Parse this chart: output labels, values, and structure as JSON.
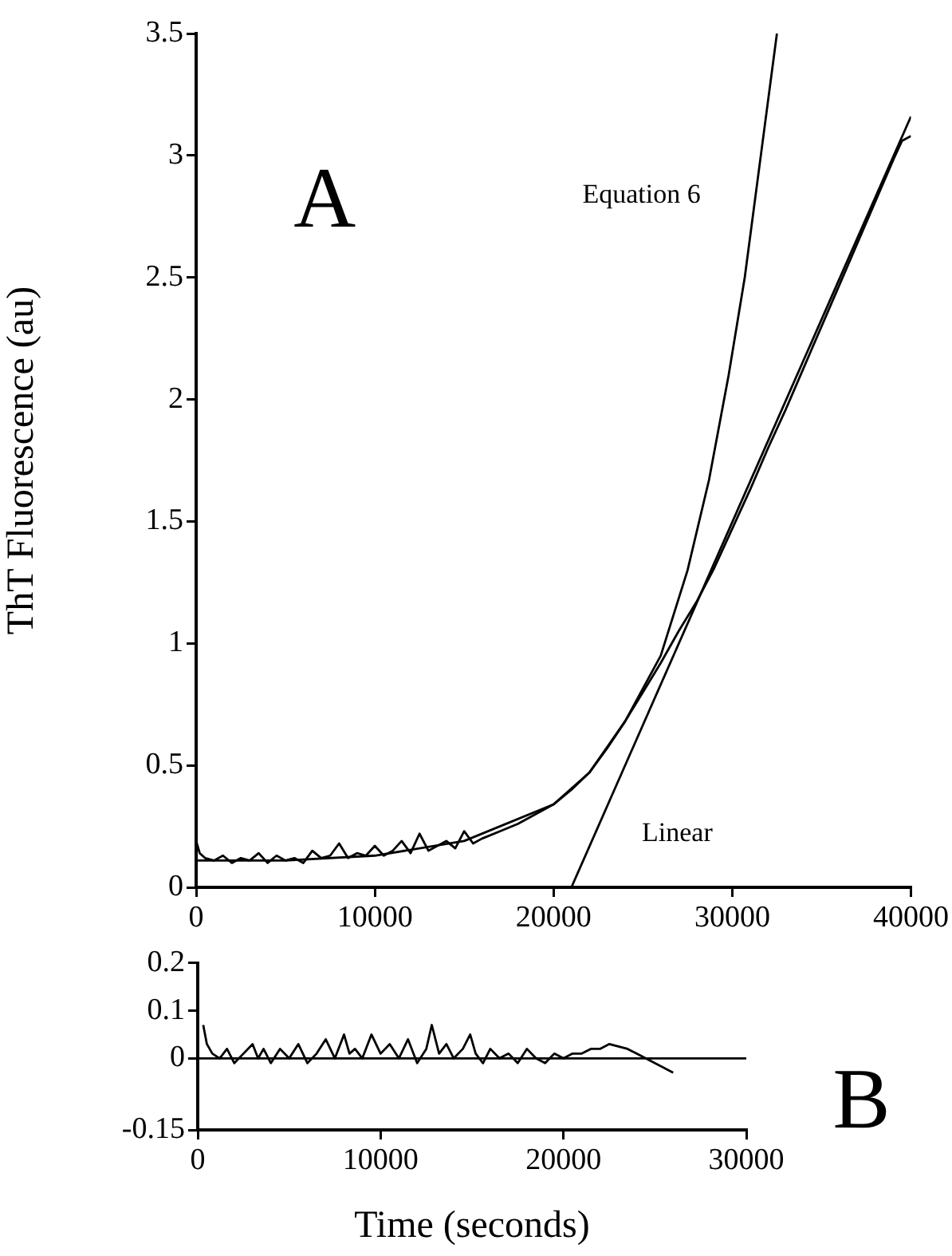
{
  "chart_data": [
    {
      "type": "line",
      "ylabel": "ThT Fluorescence (au)",
      "xlim": [
        0,
        40000
      ],
      "xticks": [
        0,
        10000,
        20000,
        30000,
        40000
      ],
      "ylim": [
        0,
        3.5
      ],
      "yticks": [
        0,
        0.5,
        1,
        1.5,
        2,
        2.5,
        3,
        3.5
      ],
      "grid": false,
      "legend": false,
      "marker": "none",
      "line_style": "solid",
      "annotations": [
        "A",
        "Equation 6",
        "Linear"
      ],
      "series": [
        {
          "color": "#000000",
          "x": [
            0,
            200,
            500,
            1000,
            1500,
            2000,
            2500,
            3000,
            3500,
            4000,
            4500,
            5000,
            5500,
            6000,
            6500,
            7000,
            7500,
            8000,
            8500,
            9000,
            9500,
            10000,
            10500,
            11000,
            11500,
            12000,
            12500,
            13000,
            13500,
            14000,
            14500,
            15000,
            15500,
            16000,
            17000,
            18000,
            19000,
            20000,
            21000,
            22000,
            23000,
            24000,
            25000,
            26000,
            27000,
            28000,
            29000,
            30000,
            31000,
            32000,
            33000,
            34000,
            35000,
            36000,
            37000,
            38000,
            39000,
            39500,
            40000
          ],
          "values": [
            0.19,
            0.14,
            0.12,
            0.11,
            0.13,
            0.1,
            0.12,
            0.11,
            0.14,
            0.1,
            0.13,
            0.11,
            0.12,
            0.1,
            0.15,
            0.12,
            0.13,
            0.18,
            0.12,
            0.14,
            0.13,
            0.17,
            0.13,
            0.15,
            0.19,
            0.14,
            0.22,
            0.15,
            0.17,
            0.19,
            0.16,
            0.23,
            0.18,
            0.2,
            0.23,
            0.26,
            0.3,
            0.34,
            0.4,
            0.47,
            0.57,
            0.68,
            0.8,
            0.92,
            1.05,
            1.17,
            1.31,
            1.47,
            1.63,
            1.8,
            1.96,
            2.13,
            2.3,
            2.47,
            2.64,
            2.81,
            2.98,
            3.06,
            3.08
          ]
        },
        {
          "color": "#000000",
          "x": [
            0,
            5000,
            10000,
            15000,
            20000,
            22000,
            24000,
            26000,
            27500,
            28700,
            29800,
            30700,
            31600,
            32500
          ],
          "values": [
            0.11,
            0.11,
            0.13,
            0.19,
            0.34,
            0.47,
            0.68,
            0.95,
            1.3,
            1.67,
            2.1,
            2.5,
            3.0,
            3.5
          ]
        },
        {
          "color": "#000000",
          "x": [
            21000,
            40000
          ],
          "values": [
            0,
            3.16
          ]
        }
      ]
    },
    {
      "type": "line",
      "xlabel": "Time (seconds)",
      "xlim": [
        0,
        30000
      ],
      "xticks": [
        0,
        10000,
        20000,
        30000
      ],
      "ylim": [
        -0.15,
        0.2
      ],
      "yticks": [
        -0.15,
        0,
        0.1,
        0.2
      ],
      "grid": false,
      "legend": false,
      "marker": "none",
      "line_style": "solid",
      "annotations": [
        "B"
      ],
      "ref_lines": [
        {
          "axis": "y",
          "value": 0,
          "color": "#000000"
        }
      ],
      "series": [
        {
          "color": "#000000",
          "x": [
            300,
            500,
            800,
            1200,
            1600,
            2000,
            2500,
            3000,
            3300,
            3600,
            4000,
            4500,
            5000,
            5500,
            6000,
            6500,
            7000,
            7500,
            8000,
            8300,
            8600,
            9000,
            9500,
            10000,
            10500,
            11000,
            11500,
            12000,
            12500,
            12800,
            13200,
            13600,
            14000,
            14500,
            14900,
            15200,
            15600,
            16000,
            16500,
            17000,
            17500,
            18000,
            18500,
            19000,
            19500,
            20000,
            20500,
            21000,
            21500,
            22000,
            22500,
            23000,
            23500,
            24000,
            24500,
            25000,
            25500,
            26000
          ],
          "values": [
            0.07,
            0.03,
            0.01,
            0,
            0.02,
            -0.01,
            0.01,
            0.03,
            0,
            0.02,
            -0.01,
            0.02,
            0,
            0.03,
            -0.01,
            0.01,
            0.04,
            0,
            0.05,
            0.01,
            0.02,
            0,
            0.05,
            0.01,
            0.03,
            0,
            0.04,
            -0.01,
            0.02,
            0.07,
            0.01,
            0.03,
            0,
            0.02,
            0.05,
            0.01,
            -0.01,
            0.02,
            0,
            0.01,
            -0.01,
            0.02,
            0,
            -0.01,
            0.01,
            0,
            0.01,
            0.01,
            0.02,
            0.02,
            0.03,
            0.025,
            0.02,
            0.01,
            0,
            -0.01,
            -0.02,
            -0.03
          ]
        }
      ]
    }
  ]
}
